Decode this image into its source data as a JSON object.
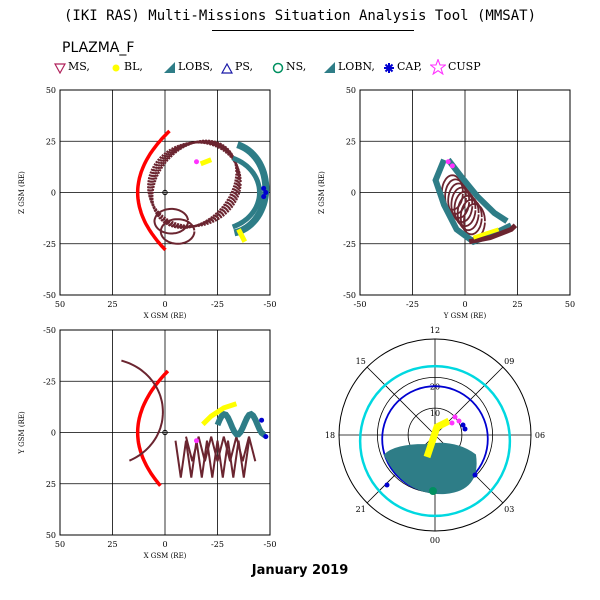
{
  "header": {
    "title": "(IKI RAS) Multi-Missions Situation Analysis Tool (MMSAT)",
    "mission": "PLAZMA_F"
  },
  "legend": [
    {
      "label": "MS,",
      "marker": "triangle-down",
      "color": "#b0205a"
    },
    {
      "label": "BL,",
      "marker": "dot",
      "color": "#ffff00"
    },
    {
      "label": "LOBS,",
      "marker": "flag",
      "color": "#2e7d87"
    },
    {
      "label": "PS,",
      "marker": "triangle-up",
      "color": "#1a1aa8"
    },
    {
      "label": "NS,",
      "marker": "circle",
      "color": "#009060"
    },
    {
      "label": "LOBN,",
      "marker": "flag",
      "color": "#2e7d87"
    },
    {
      "label": "CAP,",
      "marker": "asterisk",
      "color": "#0000d0"
    },
    {
      "label": "CUSP",
      "marker": "star",
      "color": "#ff33ff"
    }
  ],
  "colors": {
    "magnetopause": "#ff0000",
    "ms": "#6b2530",
    "bl": "#ffff00",
    "lob": "#2e7d87",
    "cap": "#0000d0",
    "cusp": "#ff33ff",
    "ns": "#009060",
    "cyan_ring": "#00d8e0",
    "blue_ring": "#0000d0"
  },
  "footer": {
    "date": "January 2019"
  },
  "chart_data": [
    {
      "type": "scatter",
      "name": "xz",
      "xlabel": "X GSM (RE)",
      "ylabel": "Z GSM (RE)",
      "xlim": [
        50,
        -50
      ],
      "ylim": [
        -50,
        50
      ],
      "xticks": [
        "50",
        "25",
        "0",
        "-25",
        "-50"
      ],
      "yticks": [
        "50",
        "25",
        "0",
        "-25",
        "-50"
      ],
      "grid": true
    },
    {
      "type": "scatter",
      "name": "yz",
      "xlabel": "Y GSM (RE)",
      "ylabel": "Z GSM (RE)",
      "xlim": [
        -50,
        50
      ],
      "ylim": [
        -50,
        50
      ],
      "xticks": [
        "-50",
        "-25",
        "0",
        "25",
        "50"
      ],
      "yticks": [
        "50",
        "25",
        "0",
        "-25",
        "-50"
      ],
      "grid": true
    },
    {
      "type": "scatter",
      "name": "xy",
      "xlabel": "X GSM (RE)",
      "ylabel": "Y GSM (RE)",
      "xlim": [
        50,
        -50
      ],
      "ylim": [
        50,
        -50
      ],
      "xticks": [
        "50",
        "25",
        "0",
        "-25",
        "-50"
      ],
      "yticks": [
        "-50",
        "-25",
        "0",
        "25",
        "50"
      ],
      "grid": true
    },
    {
      "type": "scatter",
      "name": "polar",
      "hour_labels": [
        "12",
        "15",
        "09",
        "18",
        "06",
        "21",
        "03",
        "00"
      ],
      "ring_labels": [
        "20",
        "10"
      ]
    }
  ]
}
